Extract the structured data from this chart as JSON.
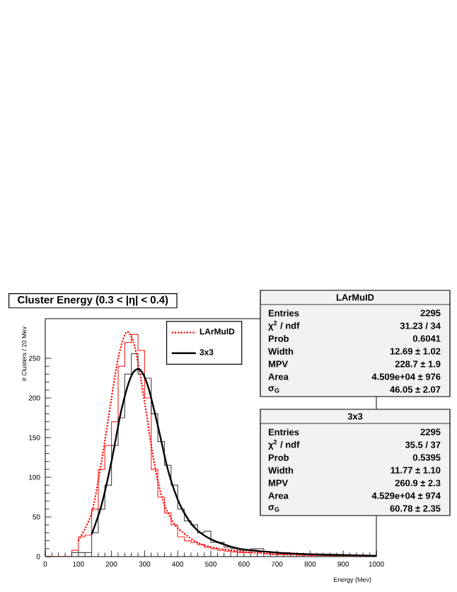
{
  "chart_data": {
    "type": "histogram",
    "title": "Cluster Energy (0.3 < |η| < 0.4)",
    "xlabel": "Energy (Mev)",
    "ylabel": "# Clusters / 20 Mev",
    "bins": [
      0,
      20,
      40,
      60,
      80,
      100,
      120,
      140,
      160,
      180,
      200,
      220,
      240,
      260,
      280,
      300,
      320,
      340,
      360,
      380,
      400,
      420,
      440,
      460,
      480,
      500,
      520,
      540,
      560,
      580,
      600,
      620,
      640,
      660,
      680,
      700,
      720,
      740,
      760,
      780,
      800,
      820,
      840,
      860,
      880,
      900,
      920,
      940,
      960,
      980,
      1000
    ],
    "xlim": [
      0,
      1000
    ],
    "xticks": [
      0,
      100,
      200,
      300,
      400,
      500,
      600,
      700,
      800,
      900,
      1000
    ],
    "ylim": [
      0,
      300
    ],
    "yticks": [
      0,
      50,
      100,
      150,
      200,
      250
    ],
    "legend": "top",
    "series": [
      {
        "color": "#ff3030",
        "values": [
          0,
          0,
          0,
          0,
          8,
          25,
          27,
          60,
          110,
          140,
          170,
          240,
          270,
          280,
          260,
          200,
          110,
          75,
          55,
          40,
          25,
          20,
          18,
          15,
          12,
          10,
          8,
          7,
          6,
          5,
          5,
          8,
          6,
          4,
          3,
          3,
          5,
          3,
          2,
          2,
          1,
          2,
          1,
          1,
          1,
          0,
          1,
          0,
          0,
          0
        ]
      },
      {
        "color": "#505050",
        "values": [
          0,
          0,
          0,
          0,
          5,
          5,
          5,
          30,
          60,
          90,
          140,
          175,
          230,
          256,
          230,
          225,
          180,
          145,
          115,
          90,
          60,
          45,
          40,
          30,
          32,
          18,
          18,
          12,
          10,
          8,
          8,
          10,
          10,
          6,
          5,
          4,
          3,
          4,
          3,
          2,
          2,
          1,
          1,
          1,
          0,
          1,
          0,
          0,
          0,
          0
        ]
      },
      {
        "type": "line",
        "name": "LArMuID",
        "color": "#ff0000",
        "line_style": "dotted",
        "x": [
          100,
          140,
          170,
          200,
          220,
          245,
          270,
          300,
          320,
          340,
          360,
          380,
          400,
          450,
          500,
          600,
          700,
          800,
          1000
        ],
        "values": [
          20,
          55,
          120,
          200,
          250,
          283,
          265,
          195,
          140,
          95,
          65,
          48,
          36,
          20,
          12,
          6,
          3,
          2,
          1
        ]
      },
      {
        "type": "line",
        "name": "3x3",
        "color": "#000000",
        "line_style": "solid",
        "x": [
          140,
          170,
          200,
          230,
          260,
          285,
          310,
          340,
          370,
          400,
          430,
          460,
          500,
          550,
          600,
          700,
          800,
          1000
        ],
        "values": [
          28,
          65,
          120,
          185,
          228,
          236,
          215,
          165,
          110,
          72,
          48,
          33,
          22,
          14,
          9,
          5,
          3,
          1
        ]
      }
    ],
    "annotations": [
      "LArMuID",
      "Entries",
      "2295",
      "χ$^{2}$ / ndf",
      "31.23 / 34",
      "Prob",
      "0.6041",
      "Width",
      "12.69 ± 1.02",
      "MPV",
      "228.7 ± 1.9",
      "Area",
      "4.509e+04 ± 976",
      "σ$_{G}$",
      "46.05 ± 2.07",
      "3x3",
      "Entries",
      "2295",
      "χ$^{2}$ / ndf",
      "35.5 / 37",
      "Prob",
      "0.5395",
      "Width",
      "11.77 ± 1.10",
      "MPV",
      "260.9 ± 2.3",
      "Area",
      "4.529e+04 ± 974",
      "σ$_{G}$",
      "60.78 ± 2.35"
    ]
  }
}
